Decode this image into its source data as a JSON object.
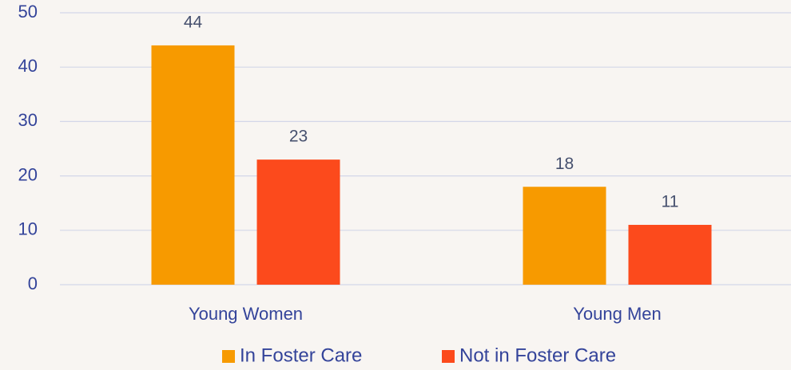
{
  "chart_data": {
    "type": "bar",
    "categories": [
      "Young Women",
      "Young Men"
    ],
    "series": [
      {
        "name": "In Foster Care",
        "color": "#f79a00",
        "values": [
          44,
          18
        ]
      },
      {
        "name": "Not in Foster Care",
        "color": "#fc4a1c",
        "values": [
          23,
          11
        ]
      }
    ],
    "ylim": [
      0,
      50
    ],
    "yticks": [
      0,
      10,
      20,
      30,
      40,
      50
    ],
    "grid": true,
    "legend": "bottom"
  }
}
